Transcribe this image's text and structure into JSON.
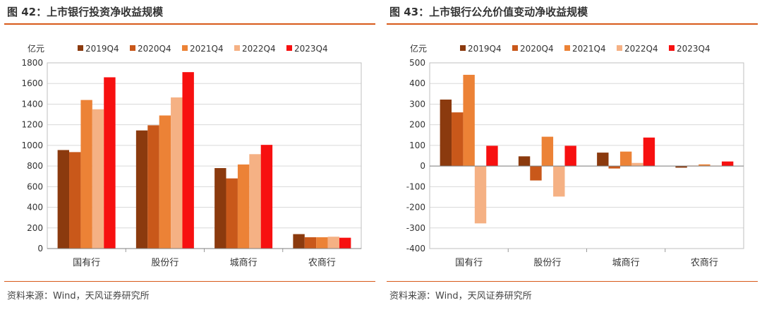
{
  "charts": [
    {
      "title": "图 42：上市银行投资净收益规模",
      "source": "资料来源：Wind，天风证券研究所",
      "chart_data": {
        "type": "bar",
        "ylabel": "亿元",
        "ylim": [
          0,
          1800
        ],
        "yticks": [
          0,
          200,
          400,
          600,
          800,
          1000,
          1200,
          1400,
          1600,
          1800
        ],
        "grid": true,
        "legend": "top",
        "categories": [
          "国有行",
          "股份行",
          "城商行",
          "农商行"
        ],
        "series": [
          {
            "name": "2019Q4",
            "color": "#8b3a0e",
            "values": [
              955,
              1145,
              780,
              140
            ]
          },
          {
            "name": "2020Q4",
            "color": "#c9581a",
            "values": [
              935,
              1195,
              680,
              110
            ]
          },
          {
            "name": "2021Q4",
            "color": "#ec8236",
            "values": [
              1440,
              1290,
              815,
              110
            ]
          },
          {
            "name": "2022Q4",
            "color": "#f5b184",
            "values": [
              1350,
              1465,
              915,
              115
            ]
          },
          {
            "name": "2023Q4",
            "color": "#f71010",
            "values": [
              1660,
              1710,
              1005,
              105
            ]
          }
        ]
      }
    },
    {
      "title": "图 43：上市银行公允价值变动净收益规模",
      "source": "资料来源：Wind，天风证券研究所",
      "chart_data": {
        "type": "bar",
        "ylabel": "亿元",
        "ylim": [
          -400,
          500
        ],
        "yticks": [
          -400,
          -300,
          -200,
          -100,
          0,
          100,
          200,
          300,
          400,
          500
        ],
        "grid": true,
        "legend": "top",
        "categories": [
          "国有行",
          "股份行",
          "城商行",
          "农商行"
        ],
        "series": [
          {
            "name": "2019Q4",
            "color": "#8b3a0e",
            "values": [
              322,
              47,
              65,
              -8
            ]
          },
          {
            "name": "2020Q4",
            "color": "#c9581a",
            "values": [
              260,
              -70,
              -12,
              2
            ]
          },
          {
            "name": "2021Q4",
            "color": "#ec8236",
            "values": [
              442,
              142,
              70,
              8
            ]
          },
          {
            "name": "2022Q4",
            "color": "#f5b184",
            "values": [
              -278,
              -148,
              15,
              2
            ]
          },
          {
            "name": "2023Q4",
            "color": "#f71010",
            "values": [
              98,
              98,
              138,
              22
            ]
          }
        ]
      }
    }
  ]
}
